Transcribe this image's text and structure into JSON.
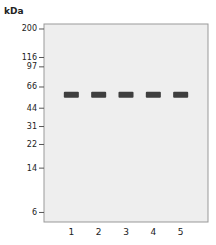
{
  "chart_data": {
    "type": "blot",
    "y_label": "kDa",
    "categories": [
      "1",
      "2",
      "3",
      "4",
      "5"
    ],
    "values": [
      57,
      57,
      57,
      57,
      57
    ],
    "color": "#2a2a2a",
    "log": "y",
    "ylim": [
      5,
      220
    ],
    "yticks": [
      200,
      116,
      97,
      66,
      44,
      31,
      22,
      14,
      6
    ],
    "grid": false
  }
}
